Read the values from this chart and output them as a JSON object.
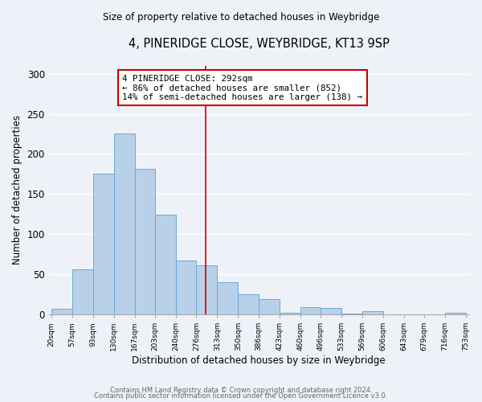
{
  "title": "4, PINERIDGE CLOSE, WEYBRIDGE, KT13 9SP",
  "subtitle": "Size of property relative to detached houses in Weybridge",
  "xlabel": "Distribution of detached houses by size in Weybridge",
  "ylabel": "Number of detached properties",
  "bar_edges": [
    20,
    57,
    93,
    130,
    167,
    203,
    240,
    276,
    313,
    350,
    386,
    423,
    460,
    496,
    533,
    569,
    606,
    643,
    679,
    716,
    753
  ],
  "bar_heights": [
    7,
    56,
    175,
    226,
    181,
    124,
    67,
    61,
    40,
    25,
    19,
    2,
    9,
    8,
    1,
    4,
    0,
    0,
    0,
    2
  ],
  "bar_color": "#b8d0e8",
  "bar_edge_color": "#6aaad4",
  "vline_x": 292,
  "vline_color": "#cc0000",
  "annotation_line1": "4 PINERIDGE CLOSE: 292sqm",
  "annotation_line2": "← 86% of detached houses are smaller (852)",
  "annotation_line3": "14% of semi-detached houses are larger (138) →",
  "annotation_box_color": "#ffffff",
  "annotation_box_edge_color": "#cc0000",
  "ylim": [
    0,
    310
  ],
  "yticks": [
    0,
    50,
    100,
    150,
    200,
    250,
    300
  ],
  "footer_line1": "Contains HM Land Registry data © Crown copyright and database right 2024.",
  "footer_line2": "Contains public sector information licensed under the Open Government Licence v3.0.",
  "tick_labels": [
    "20sqm",
    "57sqm",
    "93sqm",
    "130sqm",
    "167sqm",
    "203sqm",
    "240sqm",
    "276sqm",
    "313sqm",
    "350sqm",
    "386sqm",
    "423sqm",
    "460sqm",
    "496sqm",
    "533sqm",
    "569sqm",
    "606sqm",
    "643sqm",
    "679sqm",
    "716sqm",
    "753sqm"
  ],
  "background_color": "#eef2f8"
}
